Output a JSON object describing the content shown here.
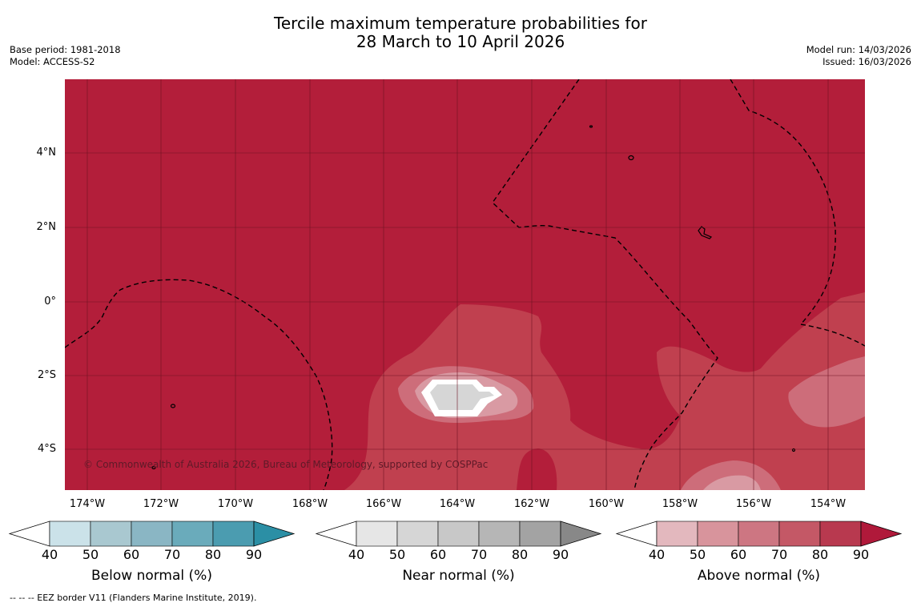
{
  "title": {
    "line1": "Tercile maximum temperature probabilities for",
    "line2": "28 March to 10 April 2026"
  },
  "meta": {
    "base_period": "Base period: 1981-2018",
    "model": "Model: ACCESS-S2",
    "model_run": "Model run: 14/03/2026",
    "issued": "Issued: 16/03/2026"
  },
  "map": {
    "latitude_labels": [
      "4°N",
      "2°N",
      "0°",
      "2°S",
      "4°S"
    ],
    "longitude_labels": [
      "174°W",
      "172°W",
      "170°W",
      "168°W",
      "166°W",
      "164°W",
      "162°W",
      "160°W",
      "158°W",
      "156°W",
      "154°W"
    ],
    "copyright": "© Commonwealth of Australia 2026, Bureau of Meteorology, supported by COSPPac",
    "background_color": "#b31e3a"
  },
  "colorbars": [
    {
      "label": "Below normal (%)",
      "ticks": [
        "40",
        "50",
        "60",
        "70",
        "80",
        "90"
      ],
      "colors": [
        "#cbe2e9",
        "#a9c8d0",
        "#8ab6c4",
        "#6aabbb",
        "#4b9cb0",
        "#2b8fa5"
      ]
    },
    {
      "label": "Near normal (%)",
      "ticks": [
        "40",
        "50",
        "60",
        "70",
        "80",
        "90"
      ],
      "colors": [
        "#e6e6e6",
        "#d6d6d6",
        "#c8c8c8",
        "#b6b6b6",
        "#a3a3a3",
        "#888888"
      ]
    },
    {
      "label": "Above normal (%)",
      "ticks": [
        "40",
        "50",
        "60",
        "70",
        "80",
        "90"
      ],
      "colors": [
        "#e3b8be",
        "#d8949c",
        "#cd7682",
        "#c45866",
        "#b8394f",
        "#b0193a"
      ]
    }
  ],
  "footnote": "--  --  -- EEZ border V11 (Flanders Marine Institute, 2019)."
}
